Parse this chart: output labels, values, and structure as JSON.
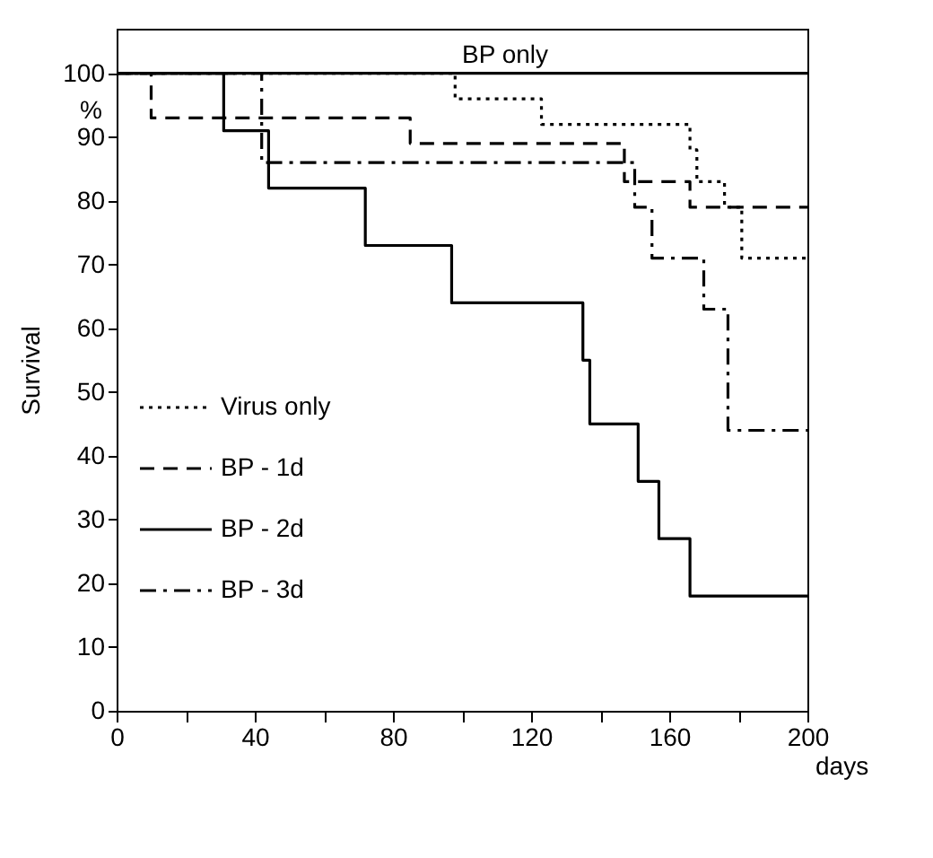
{
  "chart_data": {
    "type": "step",
    "ylabel": "Survival",
    "xlabel": "days",
    "xlim": [
      0,
      200
    ],
    "ylim": [
      0,
      107
    ],
    "xticks": [
      0,
      {
        "value": 20,
        "label": null
      },
      40,
      {
        "value": 60,
        "label": null
      },
      80,
      {
        "value": 100,
        "label": null
      },
      120,
      {
        "value": 140,
        "label": null
      },
      160,
      {
        "value": 180,
        "label": null
      },
      200
    ],
    "yticks": [
      0,
      10,
      20,
      30,
      40,
      50,
      60,
      70,
      80,
      90,
      100
    ],
    "grid": false,
    "legend": "left",
    "annotations": [
      "%",
      {
        "text": "BP only",
        "x": 100,
        "y": 100
      }
    ],
    "series": [
      {
        "name": "Virus only",
        "color": "#000000",
        "line_style": "dotted",
        "x": [
          0,
          98,
          123,
          166,
          168,
          176,
          181,
          200
        ],
        "values": [
          100,
          96,
          92,
          88,
          83,
          79,
          71,
          71
        ]
      },
      {
        "name": "BP - 1d",
        "color": "#000000",
        "line_style": "dashed",
        "x": [
          0,
          10,
          85,
          147,
          166,
          200
        ],
        "values": [
          100,
          93,
          89,
          83,
          79,
          79
        ]
      },
      {
        "name": "BP - 2d",
        "color": "#000000",
        "line_style": "solid",
        "x": [
          0,
          31,
          44,
          72,
          97,
          135,
          137,
          151,
          157,
          166,
          200
        ],
        "values": [
          100,
          91,
          82,
          73,
          64,
          55,
          45,
          36,
          27,
          18,
          18
        ]
      },
      {
        "name": "BP - 3d",
        "color": "#000000",
        "line_style": "dashdot",
        "x": [
          0,
          42,
          150,
          155,
          170,
          177,
          200
        ],
        "values": [
          100,
          86,
          79,
          71,
          63,
          44,
          44
        ]
      },
      {
        "color": "#000000",
        "line_style": "solid",
        "x": [
          0,
          200
        ],
        "values": [
          100,
          100
        ]
      }
    ]
  }
}
